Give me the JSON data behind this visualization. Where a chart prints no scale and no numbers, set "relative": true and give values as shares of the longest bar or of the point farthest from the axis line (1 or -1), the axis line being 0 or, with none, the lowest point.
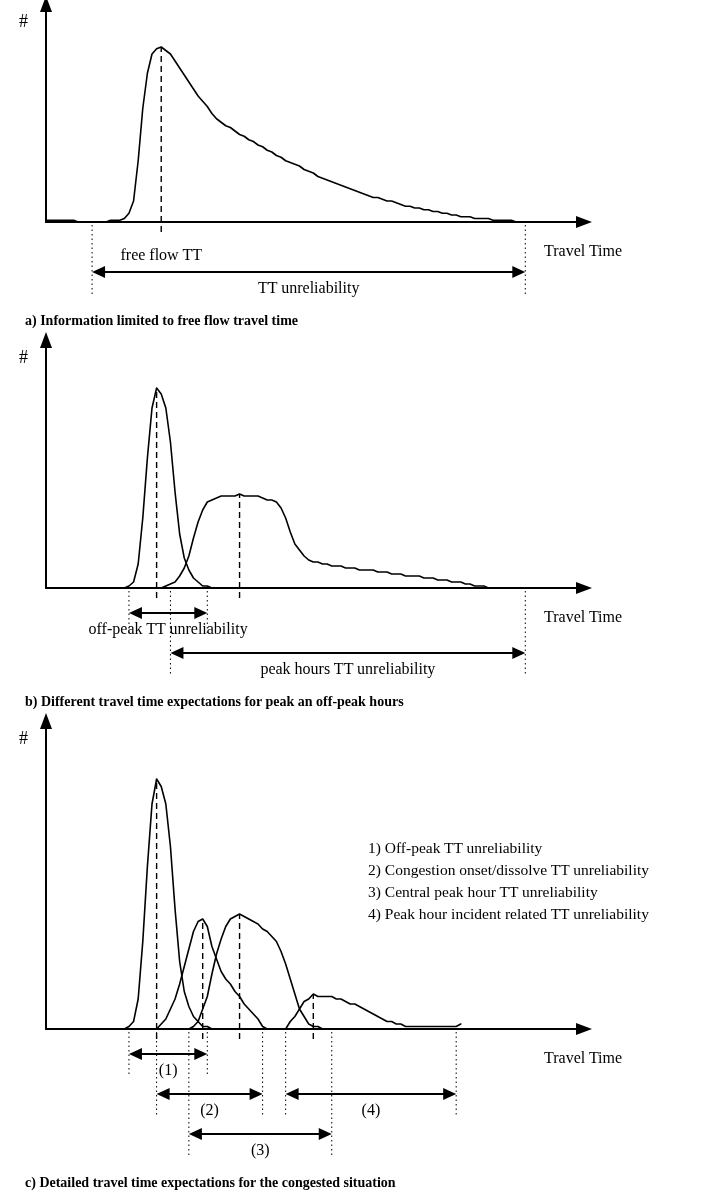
{
  "chart_data": [
    {
      "type": "line",
      "title": "a) Information limited to free flow travel time",
      "xlabel": "Travel Time",
      "ylabel": "#",
      "relative": true,
      "marker": "none",
      "line_style": "solid",
      "categories": [
        null,
        null,
        null,
        null,
        null,
        null,
        null,
        null,
        null,
        null,
        null,
        null,
        null,
        null,
        null,
        null,
        null,
        null,
        null,
        null,
        null,
        null,
        null,
        null,
        null,
        null,
        null,
        null,
        null,
        null,
        null,
        null,
        null,
        null,
        null,
        null,
        null,
        null,
        null,
        null,
        null,
        null,
        null,
        null,
        null,
        null,
        null,
        null,
        null,
        null,
        null,
        null,
        null,
        null,
        null,
        null,
        null,
        null,
        null,
        null,
        null,
        null,
        null,
        null,
        null,
        null,
        null,
        null,
        null,
        null,
        null,
        null,
        null,
        null,
        null,
        null,
        null,
        null,
        null,
        null,
        null,
        null,
        null,
        null,
        null,
        null,
        null,
        null,
        null,
        null,
        null,
        null,
        null,
        null,
        null,
        null,
        null,
        null,
        null,
        null,
        null,
        null,
        null,
        null,
        null,
        null,
        null,
        null,
        null,
        null,
        null,
        null,
        null,
        null,
        null,
        null
      ],
      "series": [
        {
          "color": "#000000",
          "values": [
            0.01,
            0.01,
            0.01,
            0.01,
            0.01,
            0.01,
            0.01,
            0,
            0,
            0,
            0,
            0,
            0,
            0,
            0.01,
            0.01,
            0.01,
            0.02,
            0.05,
            0.12,
            0.35,
            0.65,
            0.85,
            0.96,
            0.99,
            1,
            0.98,
            0.96,
            0.92,
            0.88,
            0.84,
            0.8,
            0.76,
            0.72,
            0.69,
            0.66,
            0.62,
            0.59,
            0.57,
            0.55,
            0.54,
            0.52,
            0.5,
            0.49,
            0.47,
            0.46,
            0.44,
            0.43,
            0.41,
            0.4,
            0.38,
            0.37,
            0.35,
            0.34,
            0.33,
            0.32,
            0.3,
            0.29,
            0.28,
            0.26,
            0.25,
            0.24,
            0.23,
            0.22,
            0.21,
            0.2,
            0.19,
            0.18,
            0.17,
            0.16,
            0.15,
            0.14,
            0.14,
            0.13,
            0.12,
            0.12,
            0.11,
            0.1,
            0.09,
            0.09,
            0.08,
            0.08,
            0.07,
            0.07,
            0.06,
            0.06,
            0.05,
            0.05,
            0.04,
            0.04,
            0.03,
            0.03,
            0.03,
            0.02,
            0.02,
            0.02,
            0.02,
            0.01,
            0.01,
            0.01,
            0.01,
            0.01,
            0,
            0,
            0,
            null,
            null,
            null,
            null,
            null,
            null,
            null,
            null,
            null,
            null,
            null
          ]
        }
      ],
      "annotations": [
        "free flow TT",
        "TT unreliability"
      ]
    },
    {
      "type": "line",
      "title": "b) Different travel time expectations for peak an off-peak hours",
      "xlabel": "Travel Time",
      "ylabel": "#",
      "relative": true,
      "marker": "none",
      "line_style": "solid",
      "categories": [
        null,
        null,
        null,
        null,
        null,
        null,
        null,
        null,
        null,
        null,
        null,
        null,
        null,
        null,
        null,
        null,
        null,
        null,
        null,
        null,
        null,
        null,
        null,
        null,
        null,
        null,
        null,
        null,
        null,
        null,
        null,
        null,
        null,
        null,
        null,
        null,
        null,
        null,
        null,
        null,
        null,
        null,
        null,
        null,
        null,
        null,
        null,
        null,
        null,
        null,
        null,
        null,
        null,
        null,
        null,
        null,
        null,
        null,
        null,
        null,
        null,
        null,
        null,
        null,
        null,
        null,
        null,
        null,
        null,
        null,
        null,
        null,
        null,
        null,
        null,
        null,
        null,
        null,
        null,
        null,
        null,
        null,
        null,
        null,
        null,
        null,
        null,
        null,
        null,
        null,
        null,
        null,
        null,
        null,
        null,
        null,
        null,
        null,
        null,
        null,
        null,
        null,
        null,
        null,
        null,
        null,
        null,
        null,
        null,
        null,
        null,
        null,
        null,
        null,
        null,
        null
      ],
      "series": [
        {
          "color": "#000000",
          "values": [
            null,
            null,
            null,
            null,
            null,
            null,
            null,
            null,
            null,
            null,
            0,
            0,
            0,
            0,
            0,
            0,
            0,
            0,
            0.01,
            0.03,
            0.12,
            0.35,
            0.65,
            0.9,
            1,
            0.97,
            0.9,
            0.73,
            0.48,
            0.27,
            0.15,
            0.09,
            0.05,
            0.03,
            0.01,
            0.01,
            0,
            0,
            0,
            null,
            null,
            null,
            null,
            null,
            null,
            null,
            null,
            null,
            null,
            null,
            null,
            null,
            null,
            null,
            null,
            null,
            null,
            null,
            null,
            null,
            null,
            null,
            null,
            null,
            null,
            null,
            null,
            null,
            null,
            null,
            null,
            null,
            null,
            null,
            null,
            null,
            null,
            null,
            null,
            null,
            null,
            null,
            null,
            null,
            null,
            null,
            null,
            null,
            null,
            null,
            null,
            null,
            null,
            null,
            null,
            null,
            null,
            null,
            null,
            null,
            null,
            null,
            null,
            null,
            null,
            null,
            null,
            null,
            null,
            null,
            null,
            null,
            null,
            null,
            null,
            null
          ]
        },
        {
          "color": "#000000",
          "values": [
            null,
            null,
            null,
            null,
            null,
            null,
            null,
            null,
            null,
            null,
            null,
            null,
            null,
            null,
            null,
            null,
            null,
            null,
            null,
            null,
            null,
            null,
            null,
            null,
            0,
            0,
            0.01,
            0.02,
            0.03,
            0.06,
            0.1,
            0.16,
            0.25,
            0.33,
            0.39,
            0.43,
            0.44,
            0.45,
            0.46,
            0.46,
            0.46,
            0.46,
            0.47,
            0.46,
            0.46,
            0.46,
            0.46,
            0.45,
            0.44,
            0.44,
            0.43,
            0.4,
            0.35,
            0.28,
            0.22,
            0.19,
            0.16,
            0.14,
            0.13,
            0.13,
            0.12,
            0.12,
            0.11,
            0.11,
            0.11,
            0.1,
            0.1,
            0.1,
            0.09,
            0.09,
            0.09,
            0.09,
            0.08,
            0.08,
            0.08,
            0.07,
            0.07,
            0.07,
            0.06,
            0.06,
            0.06,
            0.06,
            0.05,
            0.05,
            0.05,
            0.04,
            0.04,
            0.04,
            0.03,
            0.03,
            0.03,
            0.02,
            0.02,
            0.01,
            0.01,
            0.01,
            0,
            null,
            null,
            null,
            null,
            null,
            null,
            null,
            null,
            null,
            null,
            null,
            null,
            null,
            null,
            null,
            null,
            null,
            null,
            null
          ]
        }
      ],
      "annotations": [
        "off-peak TT unreliability",
        "peak hours TT unreliability"
      ]
    },
    {
      "type": "line",
      "title": "c) Detailed travel time expectations for the congested situation",
      "xlabel": "Travel Time",
      "ylabel": "#",
      "relative": true,
      "marker": "none",
      "line_style": "solid",
      "categories": [
        null,
        null,
        null,
        null,
        null,
        null,
        null,
        null,
        null,
        null,
        null,
        null,
        null,
        null,
        null,
        null,
        null,
        null,
        null,
        null,
        null,
        null,
        null,
        null,
        null,
        null,
        null,
        null,
        null,
        null,
        null,
        null,
        null,
        null,
        null,
        null,
        null,
        null,
        null,
        null,
        null,
        null,
        null,
        null,
        null,
        null,
        null,
        null,
        null,
        null,
        null,
        null,
        null,
        null,
        null,
        null,
        null,
        null,
        null,
        null,
        null,
        null,
        null,
        null,
        null,
        null,
        null,
        null,
        null,
        null,
        null,
        null,
        null,
        null,
        null,
        null,
        null,
        null,
        null,
        null,
        null,
        null,
        null,
        null,
        null,
        null,
        null,
        null,
        null,
        null,
        null,
        null,
        null,
        null,
        null,
        null,
        null,
        null,
        null,
        null,
        null,
        null,
        null,
        null,
        null,
        null,
        null,
        null,
        null,
        null,
        null,
        null,
        null,
        null,
        null,
        null
      ],
      "series": [
        {
          "color": "#000000",
          "values": [
            null,
            null,
            null,
            null,
            null,
            null,
            null,
            null,
            null,
            null,
            0,
            0,
            0,
            0,
            0,
            0,
            0,
            0,
            0.01,
            0.03,
            0.12,
            0.35,
            0.65,
            0.9,
            1,
            0.97,
            0.9,
            0.73,
            0.48,
            0.27,
            0.15,
            0.09,
            0.05,
            0.03,
            0.01,
            0.01,
            0,
            0,
            0,
            null,
            null,
            null,
            null,
            null,
            null,
            null,
            null,
            null,
            null,
            null,
            null,
            null,
            null,
            null,
            null,
            null,
            null,
            null,
            null,
            null,
            null,
            null,
            null,
            null,
            null,
            null,
            null,
            null,
            null,
            null,
            null,
            null,
            null,
            null,
            null,
            null,
            null,
            null,
            null,
            null,
            null,
            null,
            null,
            null,
            null,
            null,
            null,
            null,
            null,
            null,
            null,
            null,
            null,
            null,
            null,
            null,
            null,
            null,
            null,
            null,
            null,
            null,
            null,
            null,
            null,
            null,
            null,
            null,
            null,
            null,
            null,
            null,
            null,
            null,
            null,
            null
          ]
        },
        {
          "color": "#000000",
          "values": [
            null,
            null,
            null,
            null,
            null,
            null,
            null,
            null,
            null,
            null,
            null,
            null,
            null,
            null,
            null,
            null,
            null,
            null,
            null,
            null,
            null,
            null,
            null,
            null,
            0,
            0.02,
            0.04,
            0.08,
            0.12,
            0.18,
            0.25,
            0.32,
            0.39,
            0.43,
            0.44,
            0.41,
            0.33,
            0.28,
            0.23,
            0.2,
            0.18,
            0.15,
            0.13,
            0.1,
            0.08,
            0.06,
            0.04,
            0.01,
            0,
            null,
            null,
            null,
            null,
            null,
            null,
            null,
            null,
            null,
            null,
            null,
            null,
            null,
            null,
            null,
            null,
            null,
            null,
            null,
            null,
            null,
            null,
            null,
            null,
            null,
            null,
            null,
            null,
            null,
            null,
            null,
            null,
            null,
            null,
            null,
            null,
            null,
            null,
            null,
            null,
            null,
            null,
            null,
            null,
            null,
            null,
            null,
            null,
            null,
            null,
            null,
            null,
            null,
            null,
            null,
            null,
            null,
            null,
            null,
            null,
            null,
            null,
            null,
            null,
            null,
            null,
            null
          ]
        },
        {
          "color": "#000000",
          "values": [
            null,
            null,
            null,
            null,
            null,
            null,
            null,
            null,
            null,
            null,
            null,
            null,
            null,
            null,
            null,
            null,
            null,
            null,
            null,
            null,
            null,
            null,
            null,
            null,
            null,
            null,
            null,
            null,
            null,
            null,
            null,
            0,
            0.01,
            0.03,
            0.08,
            0.13,
            0.22,
            0.3,
            0.36,
            0.41,
            0.44,
            0.45,
            0.46,
            0.45,
            0.44,
            0.43,
            0.42,
            0.4,
            0.39,
            0.37,
            0.35,
            0.31,
            0.26,
            0.2,
            0.14,
            0.08,
            0.05,
            0.02,
            0.01,
            0.01,
            0,
            null,
            null,
            null,
            null,
            null,
            null,
            null,
            null,
            null,
            null,
            null,
            null,
            null,
            null,
            null,
            null,
            null,
            null,
            null,
            null,
            null,
            null,
            null,
            null,
            null,
            null,
            null,
            null,
            null,
            null,
            null,
            null,
            null,
            null,
            null,
            null,
            null,
            null,
            null,
            null,
            null,
            null,
            null,
            null,
            null,
            null,
            null,
            null,
            null,
            null,
            null,
            null,
            null,
            null,
            null
          ]
        },
        {
          "color": "#000000",
          "values": [
            null,
            null,
            null,
            null,
            null,
            null,
            null,
            null,
            null,
            null,
            null,
            null,
            null,
            null,
            null,
            null,
            null,
            null,
            null,
            null,
            null,
            null,
            null,
            null,
            null,
            null,
            null,
            null,
            null,
            null,
            null,
            null,
            null,
            null,
            null,
            null,
            null,
            null,
            null,
            null,
            null,
            null,
            null,
            null,
            null,
            null,
            null,
            null,
            null,
            null,
            null,
            null,
            0,
            0.03,
            0.05,
            0.08,
            0.11,
            0.12,
            0.14,
            0.13,
            0.13,
            0.13,
            0.13,
            0.12,
            0.12,
            0.11,
            0.1,
            0.1,
            0.09,
            0.08,
            0.07,
            0.06,
            0.05,
            0.04,
            0.03,
            0.03,
            0.02,
            0.02,
            0.01,
            0.01,
            0.01,
            0.01,
            0.01,
            0.01,
            0.01,
            0.01,
            0.01,
            0.01,
            0.01,
            0.01,
            0.02,
            null,
            null,
            null,
            null,
            null,
            null,
            null,
            null,
            null,
            null,
            null,
            null,
            null,
            null,
            null,
            null,
            null,
            null,
            null,
            null,
            null,
            null,
            null,
            null,
            null
          ]
        }
      ],
      "annotations": [
        "(1)",
        "(2)",
        "(3)",
        "(4)",
        "1) Off-peak TT unreliability",
        "2) Congestion onset/dissolve TT unreliability",
        "3) Central peak hour TT unreliability",
        "4) Peak hour incident related TT unreliability"
      ]
    }
  ]
}
